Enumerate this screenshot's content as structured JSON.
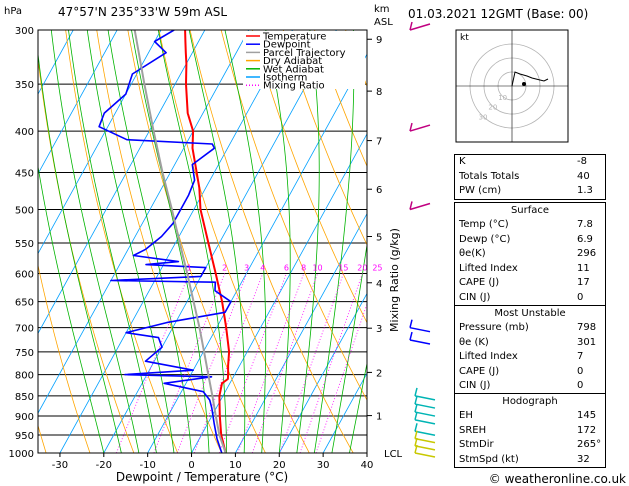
{
  "header": {
    "pressure_unit": "hPa",
    "station": "47°57'N  235°33'W  59m  ASL",
    "km_unit": "km",
    "asl_unit": "ASL",
    "datetime": "01.03.2021  12GMT  (Base: 00)"
  },
  "chart_data": {
    "type": "line",
    "title": "Skew-T log-P diagram",
    "xlabel": "Dewpoint / Temperature (°C)",
    "ylabel": "Mixing Ratio (g/kg)",
    "pressure_levels": [
      300,
      350,
      400,
      450,
      500,
      550,
      600,
      650,
      700,
      750,
      800,
      850,
      900,
      950,
      1000
    ],
    "pressure_labels": [
      "300",
      "350",
      "400",
      "450",
      "500",
      "550",
      "600",
      "650",
      "700",
      "750",
      "800",
      "850",
      "900",
      "950",
      "1000"
    ],
    "temperature_ticks": [
      -30,
      -20,
      -10,
      0,
      10,
      20,
      30,
      40
    ],
    "temperature_labels": [
      "-30",
      "-20",
      "-10",
      "0",
      "10",
      "20",
      "30",
      "40"
    ],
    "xlim": [
      -35,
      40
    ],
    "ylim": [
      1000,
      300
    ],
    "skew": 37,
    "km_ticks": [
      {
        "km": 9,
        "p": 308
      },
      {
        "km": 8,
        "p": 357
      },
      {
        "km": 7,
        "p": 411
      },
      {
        "km": 6,
        "p": 472
      },
      {
        "km": 5,
        "p": 540
      },
      {
        "km": 4,
        "p": 616
      },
      {
        "km": 3,
        "p": 701
      },
      {
        "km": 2,
        "p": 795
      },
      {
        "km": 1,
        "p": 899
      }
    ],
    "km_labels": [
      "9",
      "8",
      "7",
      "6",
      "5",
      "4",
      "3",
      "2",
      "1"
    ],
    "lcl_label": "LCL",
    "lcl_pressure": 1000,
    "mixing_ratios": [
      1,
      2,
      3,
      4,
      6,
      8,
      10,
      15,
      20,
      25
    ],
    "mixing_ratio_labels": [
      "1",
      "2",
      "3",
      "4",
      "6",
      "8",
      "10",
      "15",
      "20",
      "25"
    ],
    "legend": [
      {
        "name": "Temperature",
        "color": "#ff0000"
      },
      {
        "name": "Dewpoint",
        "color": "#0000ff"
      },
      {
        "name": "Parcel Trajectory",
        "color": "#a0a0a0"
      },
      {
        "name": "Dry Adiabat",
        "color": "#ffa500"
      },
      {
        "name": "Wet Adiabat",
        "color": "#00b400"
      },
      {
        "name": "Isotherm",
        "color": "#00a0ff"
      },
      {
        "name": "Mixing Ratio",
        "color": "#ff00ff"
      }
    ],
    "series": [
      {
        "name": "Temperature",
        "points": [
          [
            1000,
            7.8
          ],
          [
            950,
            4.5
          ],
          [
            900,
            1.8
          ],
          [
            850,
            -0.8
          ],
          [
            820,
            -1.8
          ],
          [
            810,
            -1.0
          ],
          [
            800,
            -1.5
          ],
          [
            780,
            -2.6
          ],
          [
            750,
            -4.1
          ],
          [
            700,
            -7.8
          ],
          [
            650,
            -12.0
          ],
          [
            600,
            -17.0
          ],
          [
            550,
            -22.5
          ],
          [
            500,
            -28.5
          ],
          [
            470,
            -31.5
          ],
          [
            450,
            -34.0
          ],
          [
            420,
            -38.0
          ],
          [
            400,
            -40.0
          ],
          [
            380,
            -43.5
          ],
          [
            350,
            -47.5
          ],
          [
            330,
            -50.0
          ],
          [
            320,
            -51.5
          ],
          [
            310,
            -53.0
          ],
          [
            300,
            -54.5
          ]
        ]
      },
      {
        "name": "Dewpoint",
        "points": [
          [
            1000,
            6.9
          ],
          [
            960,
            4.0
          ],
          [
            920,
            1.5
          ],
          [
            880,
            -1.0
          ],
          [
            860,
            -2.5
          ],
          [
            840,
            -5.0
          ],
          [
            820,
            -15.0
          ],
          [
            805,
            -5.0
          ],
          [
            800,
            -25.0
          ],
          [
            790,
            -10.0
          ],
          [
            770,
            -22.0
          ],
          [
            740,
            -20.0
          ],
          [
            720,
            -22.0
          ],
          [
            710,
            -30.0
          ],
          [
            690,
            -22.0
          ],
          [
            670,
            -10.0
          ],
          [
            650,
            -10.0
          ],
          [
            630,
            -15.0
          ],
          [
            615,
            -16.0
          ],
          [
            612,
            -40.0
          ],
          [
            605,
            -20.0
          ],
          [
            590,
            -20.0
          ],
          [
            585,
            -34.0
          ],
          [
            580,
            -27.0
          ],
          [
            570,
            -38.0
          ],
          [
            560,
            -36.0
          ],
          [
            540,
            -34.0
          ],
          [
            520,
            -33.0
          ],
          [
            500,
            -33.0
          ],
          [
            480,
            -33.0
          ],
          [
            460,
            -33.5
          ],
          [
            440,
            -36.0
          ],
          [
            420,
            -33.0
          ],
          [
            415,
            -34.0
          ],
          [
            410,
            -54.0
          ],
          [
            395,
            -62.0
          ],
          [
            380,
            -62.5
          ],
          [
            360,
            -60.0
          ],
          [
            340,
            -61.0
          ],
          [
            320,
            -56.0
          ],
          [
            310,
            -60.0
          ],
          [
            300,
            -57.0
          ]
        ]
      },
      {
        "name": "Parcel Trajectory",
        "points": [
          [
            1000,
            7.8
          ],
          [
            950,
            4.1
          ],
          [
            900,
            0.9
          ],
          [
            850,
            -2.4
          ],
          [
            800,
            -6.0
          ],
          [
            750,
            -9.8
          ],
          [
            700,
            -13.9
          ],
          [
            650,
            -18.5
          ],
          [
            600,
            -23.5
          ],
          [
            550,
            -29.0
          ],
          [
            500,
            -35.0
          ],
          [
            450,
            -41.8
          ],
          [
            400,
            -49.0
          ],
          [
            350,
            -57.0
          ],
          [
            300,
            -66.0
          ]
        ]
      }
    ]
  },
  "hodograph": {
    "label": "kt",
    "ring_labels": [
      "10",
      "20",
      "30"
    ],
    "points": [
      [
        0,
        0
      ],
      [
        3,
        14
      ],
      [
        8,
        12
      ],
      [
        15,
        10
      ],
      [
        20,
        8
      ],
      [
        28,
        6
      ],
      [
        32,
        5
      ],
      [
        36,
        7
      ]
    ],
    "storm_motion": [
      12,
      2
    ]
  },
  "indices": {
    "rows": [
      {
        "label": "K",
        "value": "-8"
      },
      {
        "label": "Totals Totals",
        "value": "40"
      },
      {
        "label": "PW (cm)",
        "value": "1.3"
      }
    ]
  },
  "surface": {
    "title": "Surface",
    "rows": [
      {
        "label": "Temp (°C)",
        "value": "7.8"
      },
      {
        "label": "Dewp (°C)",
        "value": "6.9"
      },
      {
        "label": "θe(K)",
        "value": "296"
      },
      {
        "label": "Lifted Index",
        "value": "11"
      },
      {
        "label": "CAPE (J)",
        "value": "17"
      },
      {
        "label": "CIN (J)",
        "value": "0"
      }
    ]
  },
  "most_unstable": {
    "title": "Most Unstable",
    "rows": [
      {
        "label": "Pressure (mb)",
        "value": "798"
      },
      {
        "label": "θe (K)",
        "value": "301"
      },
      {
        "label": "Lifted Index",
        "value": "7"
      },
      {
        "label": "CAPE (J)",
        "value": "0"
      },
      {
        "label": "CIN (J)",
        "value": "0"
      }
    ]
  },
  "hodograph_table": {
    "title": "Hodograph",
    "rows": [
      {
        "label": "EH",
        "value": "145"
      },
      {
        "label": "SREH",
        "value": "172"
      },
      {
        "label": "StmDir",
        "value": "265°"
      },
      {
        "label": "StmSpd (kt)",
        "value": "32"
      }
    ]
  },
  "wind_barbs": {
    "pressures": [
      300,
      400,
      500,
      700,
      725,
      850,
      870,
      890,
      910,
      940,
      960,
      980,
      1000
    ],
    "colors": {
      "upper": "#c00080",
      "mid": "#0000ff",
      "low": "#00b4b4",
      "sfc": "#c8c800"
    }
  },
  "footer": {
    "copyright": "© weatheronline.co.uk"
  },
  "colors": {
    "temperature": "#ff0000",
    "dewpoint": "#0000ff",
    "parcel": "#a0a0a0",
    "dry_adiabat": "#ffa500",
    "wet_adiabat": "#00b400",
    "isotherm": "#00a0ff",
    "mixing_ratio": "#ff00ff"
  }
}
